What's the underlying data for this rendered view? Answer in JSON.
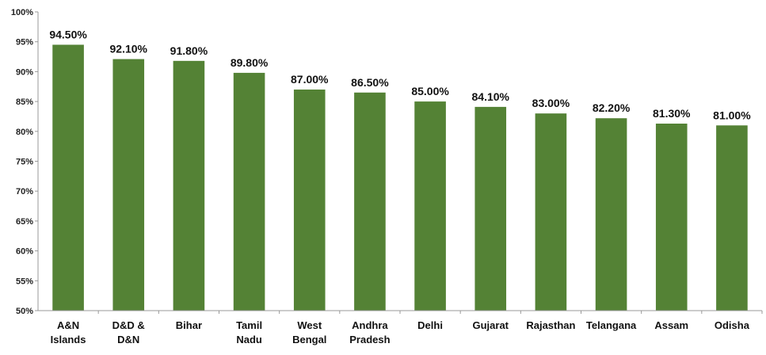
{
  "chart_data": {
    "type": "bar",
    "categories": [
      [
        "A&N",
        "Islands"
      ],
      [
        "D&D &",
        "D&N"
      ],
      [
        "Bihar"
      ],
      [
        "Tamil",
        "Nadu"
      ],
      [
        "West",
        "Bengal"
      ],
      [
        "Andhra",
        "Pradesh"
      ],
      [
        "Delhi"
      ],
      [
        "Gujarat"
      ],
      [
        "Rajasthan"
      ],
      [
        "Telangana"
      ],
      [
        "Assam"
      ],
      [
        "Odisha"
      ]
    ],
    "values": [
      94.5,
      92.1,
      91.8,
      89.8,
      87.0,
      86.5,
      85.0,
      84.1,
      83.0,
      82.2,
      81.3,
      81.0
    ],
    "data_labels": [
      "94.50%",
      "92.10%",
      "91.80%",
      "89.80%",
      "87.00%",
      "86.50%",
      "85.00%",
      "84.10%",
      "83.00%",
      "82.20%",
      "81.30%",
      "81.00%"
    ],
    "yticks": [
      50,
      55,
      60,
      65,
      70,
      75,
      80,
      85,
      90,
      95,
      100
    ],
    "ytick_labels": [
      "50%",
      "55%",
      "60%",
      "65%",
      "70%",
      "75%",
      "80%",
      "85%",
      "90%",
      "95%",
      "100%"
    ],
    "ylim": [
      50,
      100
    ],
    "title": "",
    "xlabel": "",
    "ylabel": "",
    "grid": false,
    "bar_color": "#548235",
    "axis_color": "#999999"
  }
}
